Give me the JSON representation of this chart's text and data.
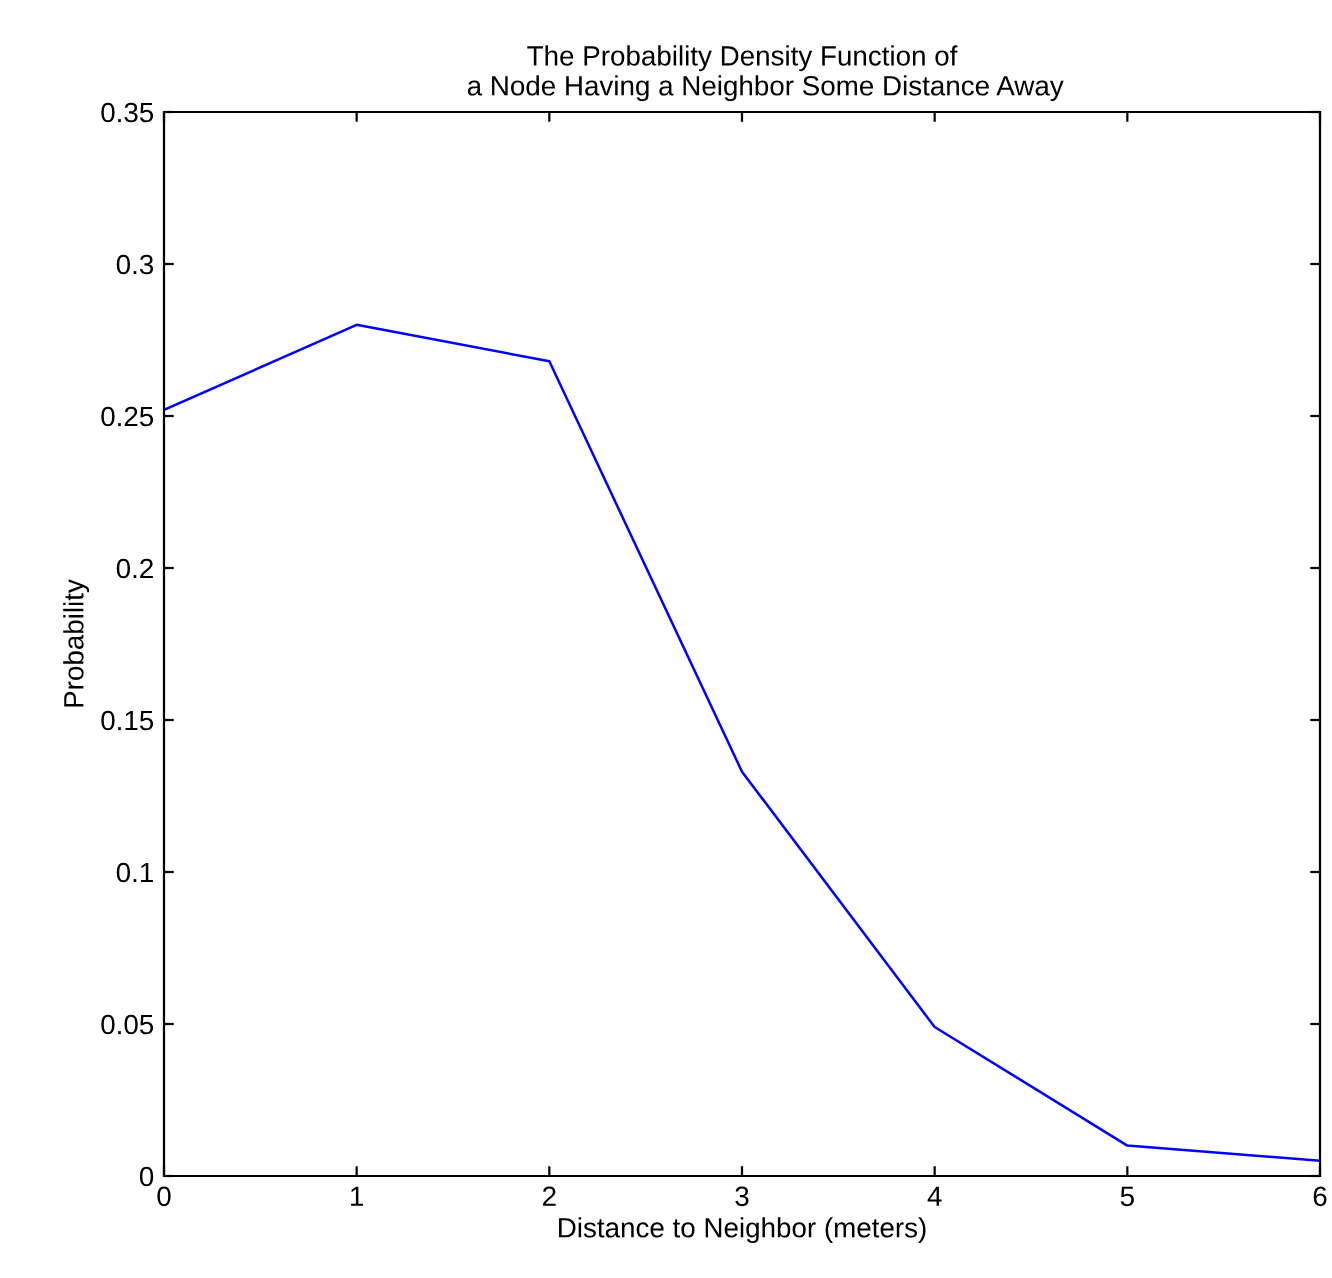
{
  "chart_data": {
    "type": "line",
    "title": "The Probability Density Function of\n      a Node Having a Neighbor Some Distance Away",
    "xlabel": "Distance to Neighbor (meters)",
    "ylabel": "Probability",
    "x": [
      0,
      1,
      2,
      3,
      4,
      5,
      6
    ],
    "series": [
      {
        "color": "#0000ff",
        "values": [
          0.252,
          0.28,
          0.268,
          0.133,
          0.049,
          0.01,
          0.005
        ]
      }
    ],
    "xlim": [
      0,
      6
    ],
    "ylim": [
      0,
      0.35
    ],
    "xticks": [
      0,
      1,
      2,
      3,
      4,
      5,
      6
    ],
    "yticks": [
      0,
      0.05,
      0.1,
      0.15,
      0.2,
      0.25,
      0.3,
      0.35
    ],
    "grid": false,
    "legend": false,
    "marker": "none",
    "line_style": "solid"
  }
}
